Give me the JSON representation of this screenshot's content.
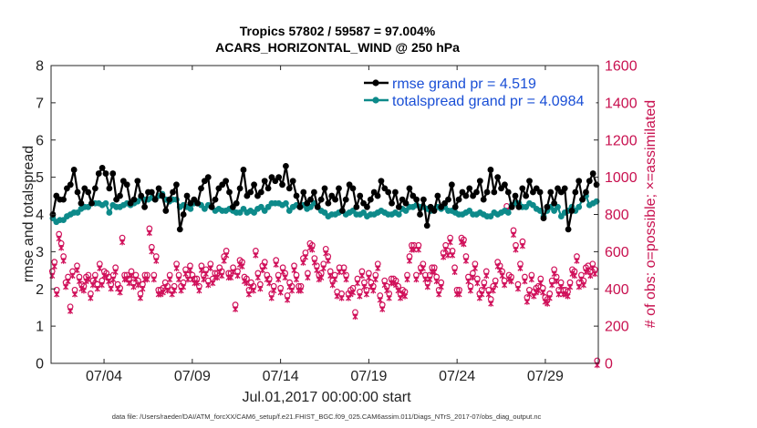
{
  "chart_data": {
    "type": "line",
    "title": "Tropics 57802 / 59587 = 97.004%",
    "subtitle": "ACARS_HORIZONTAL_WIND @ 250 hPa",
    "xlabel": "Jul.01,2017 00:00:00 start",
    "ylabel": "rmse and totalspread",
    "ylabel_right": "# of obs: o=possible; ×=assimilated",
    "x_ticks": [
      "07/04",
      "07/09",
      "07/14",
      "07/19",
      "07/24",
      "07/29"
    ],
    "x_tick_days": [
      4,
      9,
      14,
      19,
      24,
      29
    ],
    "xlim": [
      1,
      32
    ],
    "ylim": [
      0,
      8
    ],
    "y_ticks": [
      "0",
      "1",
      "2",
      "3",
      "4",
      "5",
      "6",
      "7",
      "8"
    ],
    "ylim_right": [
      0,
      1600
    ],
    "y_ticks_right": [
      "0",
      "200",
      "400",
      "600",
      "800",
      "1000",
      "1200",
      "1400",
      "1600"
    ],
    "legend_position": "top-right",
    "footer": "data file: /Users/raeder/DAI/ATM_forcXX/CAM6_setup/f.e21.FHIST_BGC.f09_025.CAM6assim.011/Diags_NTrS_2017-07/obs_diag_output.nc",
    "colors": {
      "rmse": "#000000",
      "spread": "#0d8a8a",
      "obs": "#d0105a",
      "legend_text": "#1a4fd6"
    },
    "series": [
      {
        "name": "rmse grand pr = 4.519",
        "values": [
          4.0,
          4.5,
          4.4,
          4.4,
          4.7,
          4.8,
          5.2,
          4.6,
          4.3,
          4.7,
          4.6,
          4.3,
          4.7,
          5.1,
          5.25,
          5.1,
          4.7,
          5.1,
          4.4,
          4.5,
          4.9,
          4.8,
          4.3,
          4.4,
          4.9,
          4.5,
          4.2,
          4.6,
          4.6,
          4.4,
          4.7,
          4.5,
          4.1,
          4.4,
          4.6,
          4.8,
          3.6,
          4.0,
          4.5,
          4.3,
          4.4,
          4.3,
          4.7,
          4.9,
          5.0,
          4.2,
          4.4,
          4.7,
          4.8,
          4.9,
          4.6,
          4.2,
          4.3,
          4.7,
          5.2,
          4.5,
          4.6,
          4.8,
          4.5,
          4.6,
          4.9,
          4.7,
          5.0,
          4.9,
          5.0,
          4.8,
          5.3,
          4.7,
          4.9,
          4.5,
          4.2,
          4.6,
          4.3,
          4.4,
          4.6,
          4.2,
          4.4,
          4.7,
          4.3,
          4.5,
          4.4,
          4.7,
          4.1,
          4.4,
          4.8,
          4.7,
          4.2,
          4.5,
          4.3,
          4.2,
          4.4,
          4.6,
          4.5,
          4.9,
          4.7,
          4.6,
          4.3,
          4.6,
          4.2,
          4.4,
          4.3,
          4.7,
          4.5,
          4.4,
          4.0,
          4.4,
          3.7,
          4.2,
          4.1,
          4.5,
          4.2,
          4.3,
          4.4,
          4.8,
          4.2,
          4.4,
          4.6,
          4.5,
          4.7,
          4.5,
          4.6,
          4.9,
          4.4,
          4.6,
          5.2,
          4.6,
          5.0,
          4.7,
          4.8,
          4.6,
          4.2,
          4.5,
          4.2,
          4.7,
          4.5,
          4.9,
          4.6,
          4.7,
          4.6,
          3.9,
          4.2,
          4.6,
          4.3,
          4.7,
          4.6,
          4.7,
          3.6,
          4.1,
          4.6,
          4.9,
          4.4,
          4.6,
          4.9,
          5.1,
          4.8
        ]
      },
      {
        "name": "totalspread grand pr = 4.0984",
        "values": [
          3.9,
          3.8,
          3.85,
          3.85,
          3.95,
          4.0,
          4.05,
          4.05,
          4.15,
          4.2,
          4.2,
          4.3,
          4.3,
          4.3,
          4.25,
          4.3,
          4.05,
          4.25,
          4.2,
          4.2,
          4.25,
          4.3,
          4.25,
          4.3,
          4.35,
          4.45,
          4.4,
          4.4,
          4.45,
          4.4,
          4.5,
          4.55,
          4.4,
          4.35,
          4.4,
          4.4,
          4.2,
          4.25,
          4.2,
          4.15,
          4.3,
          4.3,
          4.25,
          4.15,
          4.25,
          4.2,
          4.1,
          4.15,
          4.1,
          4.1,
          4.15,
          4.1,
          4.05,
          4.05,
          4.15,
          4.05,
          4.1,
          4.05,
          4.15,
          4.2,
          4.1,
          4.2,
          4.3,
          4.3,
          4.3,
          4.25,
          4.3,
          4.1,
          4.2,
          4.25,
          4.2,
          4.25,
          4.15,
          4.2,
          4.3,
          4.2,
          4.1,
          4.05,
          3.95,
          4.0,
          4.0,
          4.05,
          4.1,
          4.0,
          4.05,
          4.1,
          4.0,
          4.0,
          4.05,
          3.95,
          4.0,
          4.0,
          4.05,
          4.1,
          4.05,
          4.0,
          4.0,
          4.05,
          4.0,
          4.15,
          4.1,
          4.2,
          4.2,
          4.25,
          4.2,
          4.2,
          4.15,
          4.1,
          4.15,
          4.2,
          4.15,
          4.2,
          4.1,
          4.1,
          4.05,
          4.0,
          4.0,
          4.05,
          4.1,
          4.0,
          4.0,
          4.05,
          4.0,
          3.95,
          3.95,
          4.05,
          4.0,
          4.05,
          4.1,
          4.05,
          4.25,
          4.3,
          4.3,
          4.2,
          4.2,
          4.3,
          4.25,
          4.15,
          4.1,
          3.95,
          4.1,
          4.2,
          4.1,
          4.2,
          3.95,
          4.05,
          4.1,
          4.2,
          4.1,
          4.2,
          4.4,
          4.5,
          4.25,
          4.3,
          4.35
        ]
      }
    ],
    "obs_possible": [
      480,
      530,
      380,
      680,
      630,
      560,
      420,
      450,
      290,
      480,
      380,
      510,
      450,
      410,
      400,
      450,
      460,
      360,
      430,
      460,
      410,
      520,
      430,
      480,
      470,
      450,
      410,
      460,
      500,
      410,
      390,
      660,
      460,
      460,
      440,
      480,
      420,
      460,
      430,
      360,
      410,
      460,
      460,
      710,
      610,
      460,
      560,
      380,
      380,
      390,
      420,
      400,
      460,
      380,
      400,
      520,
      460,
      400,
      420,
      490,
      460,
      510,
      460,
      440,
      440,
      400,
      510,
      460,
      490,
      430,
      520,
      440,
      470,
      470,
      500,
      480,
      560,
      590,
      470,
      470,
      500,
      300,
      480,
      540,
      530,
      450,
      440,
      380,
      420,
      400,
      590,
      470,
      410,
      510,
      530,
      460,
      440,
      360,
      400,
      540,
      460,
      390,
      500,
      470,
      350,
      420,
      400,
      510,
      460,
      400,
      400,
      550,
      580,
      470,
      630,
      620,
      550,
      510,
      460,
      470,
      520,
      600,
      560,
      480,
      430,
      460,
      370,
      500,
      360,
      500,
      460,
      360,
      380,
      390,
      260,
      440,
      370,
      480,
      420,
      380,
      470,
      420,
      400,
      460,
      520,
      350,
      300,
      430,
      400,
      360,
      440,
      440,
      430,
      400,
      360,
      380,
      370,
      460,
      560,
      620,
      620,
      460,
      620,
      500,
      520,
      460,
      420,
      460,
      500,
      500,
      450,
      380,
      420,
      580,
      620,
      590,
      660,
      590,
      500,
      380,
      380,
      660,
      650,
      560,
      450,
      400,
      470,
      520,
      440,
      360,
      380,
      420,
      480,
      380,
      330,
      400,
      430,
      530,
      510,
      480,
      430,
      830,
      460,
      450,
      700,
      620,
      410,
      520,
      640,
      450,
      340,
      380,
      460,
      370,
      390,
      400,
      440,
      390,
      340,
      330,
      360,
      430,
      490,
      450,
      380,
      420,
      380,
      380,
      370,
      420,
      490,
      480,
      560,
      420,
      460,
      430,
      500,
      510,
      480,
      520,
      490,
      0
    ]
  }
}
